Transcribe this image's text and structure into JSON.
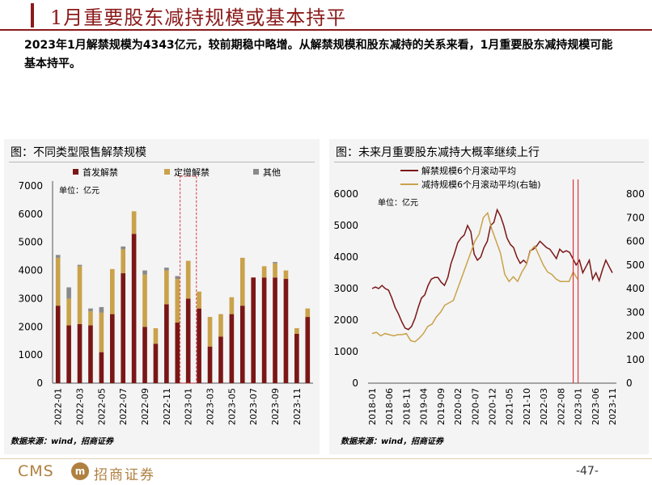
{
  "title": "1月重要股东减持规模或基本持平",
  "summary": "2023年1月解禁规模为4343亿元，较前期稳中略增。从解禁规模和股东减持的关系来看，1月重要股东减持规模可能基本持平。",
  "colors": {
    "brand": "#8b1a1a",
    "bar_first": "#7b1616",
    "bar_fixed": "#c9a24b",
    "bar_other": "#8a8a8a",
    "line_unlock": "#7b1616",
    "line_reduce": "#c9a24b",
    "marker": "#d9363e"
  },
  "left_panel": {
    "title": "图：不同类型限售解禁规模",
    "unit": "单位：亿元",
    "source": "数据来源：wind，招商证券"
  },
  "right_panel": {
    "title": "图：未来月重要股东减持大概率继续上行",
    "unit": "单位：亿元",
    "source": "数据来源：wind，招商证券"
  },
  "footer": {
    "logo_text": "CMS",
    "logo_mark": "m",
    "company": "招商证券",
    "page": "-47-"
  },
  "chart_data": [
    {
      "type": "bar",
      "stacked": true,
      "categories": [
        "2022-01",
        "2022-02",
        "2022-03",
        "2022-04",
        "2022-05",
        "2022-06",
        "2022-07",
        "2022-08",
        "2022-09",
        "2022-10",
        "2022-11",
        "2022-12",
        "2023-01",
        "2023-02",
        "2023-03",
        "2023-04",
        "2023-05",
        "2023-06",
        "2023-07",
        "2023-08",
        "2023-09",
        "2023-10",
        "2023-11",
        "2023-12"
      ],
      "tick_labels": [
        "2022-01",
        "2022-03",
        "2022-05",
        "2022-07",
        "2022-09",
        "2022-11",
        "2023-01",
        "2023-03",
        "2023-05",
        "2023-07",
        "2023-09",
        "2023-11"
      ],
      "series": [
        {
          "name": "首发解禁",
          "values": [
            2750,
            2050,
            2100,
            2050,
            1100,
            2450,
            3900,
            5300,
            2000,
            1400,
            2800,
            2150,
            3000,
            2650,
            1300,
            1650,
            2450,
            2750,
            3750,
            3750,
            3750,
            3700,
            1750,
            2350
          ]
        },
        {
          "name": "定增解禁",
          "values": [
            1700,
            950,
            2050,
            500,
            1400,
            1600,
            850,
            800,
            1850,
            550,
            1200,
            1550,
            1343,
            600,
            1050,
            800,
            600,
            1700,
            0,
            400,
            500,
            300,
            200,
            300
          ]
        },
        {
          "name": "其他",
          "values": [
            100,
            400,
            50,
            100,
            200,
            0,
            100,
            0,
            150,
            0,
            100,
            100,
            0,
            0,
            0,
            0,
            0,
            0,
            0,
            0,
            50,
            0,
            0,
            0
          ]
        }
      ],
      "ylim": [
        0,
        7000
      ],
      "yticks": [
        0,
        1000,
        2000,
        3000,
        4000,
        5000,
        6000,
        7000
      ],
      "highlight_category": "2023-01",
      "legend": "top",
      "ylabel": "",
      "xlabel": ""
    },
    {
      "type": "line",
      "x_tick_labels": [
        "2018-01",
        "2018-06",
        "2018-11",
        "2019-04",
        "2019-09",
        "2020-02",
        "2020-07",
        "2020-12",
        "2021-05",
        "2021-10",
        "2022-03",
        "2022-08",
        "2023-01",
        "2023-06",
        "2023-11"
      ],
      "series": [
        {
          "name": "解禁规模6个月滚动平均",
          "axis": "left",
          "values": [
            3000,
            3050,
            3000,
            3100,
            3000,
            2950,
            2700,
            2400,
            2200,
            1950,
            1750,
            1700,
            1800,
            2050,
            2400,
            2700,
            2800,
            3100,
            3300,
            3350,
            3350,
            3200,
            3100,
            3350,
            3800,
            4100,
            4450,
            4600,
            4700,
            5000,
            4800,
            4100,
            3900,
            4000,
            4300,
            4500,
            5000,
            5100,
            5500,
            5300,
            5000,
            4600,
            4400,
            4300,
            4000,
            3800,
            3900,
            3800,
            4200,
            4250,
            4350,
            4500,
            4400,
            4300,
            4250,
            4100,
            3950,
            4250,
            4150,
            4200,
            4150,
            3950,
            3750,
            3900,
            3500,
            3700,
            3900,
            3300,
            3500,
            3250,
            3600,
            3900,
            3700,
            3500
          ]
        },
        {
          "name": "减持规模6个月滚动平均(右轴)",
          "axis": "right",
          "values": [
            210,
            215,
            200,
            210,
            205,
            200,
            205,
            205,
            210,
            180,
            175,
            190,
            210,
            240,
            250,
            280,
            300,
            330,
            340,
            350,
            400,
            450,
            500,
            550,
            600,
            630,
            700,
            720,
            650,
            600,
            550,
            460,
            430,
            450,
            430,
            470,
            500,
            560,
            580,
            540,
            500,
            470,
            460,
            440,
            430,
            430,
            430,
            470,
            440
          ]
        }
      ],
      "ylim_left": [
        0,
        6000
      ],
      "yticks_left": [
        0,
        1000,
        2000,
        3000,
        4000,
        5000,
        6000
      ],
      "ylim_right": [
        0,
        800
      ],
      "yticks_right": [
        0,
        100,
        200,
        300,
        400,
        500,
        600,
        700,
        800
      ],
      "vertical_markers": [
        "2022-12",
        "2023-01"
      ],
      "legend": "top",
      "xlabel": "",
      "ylabel": ""
    }
  ]
}
